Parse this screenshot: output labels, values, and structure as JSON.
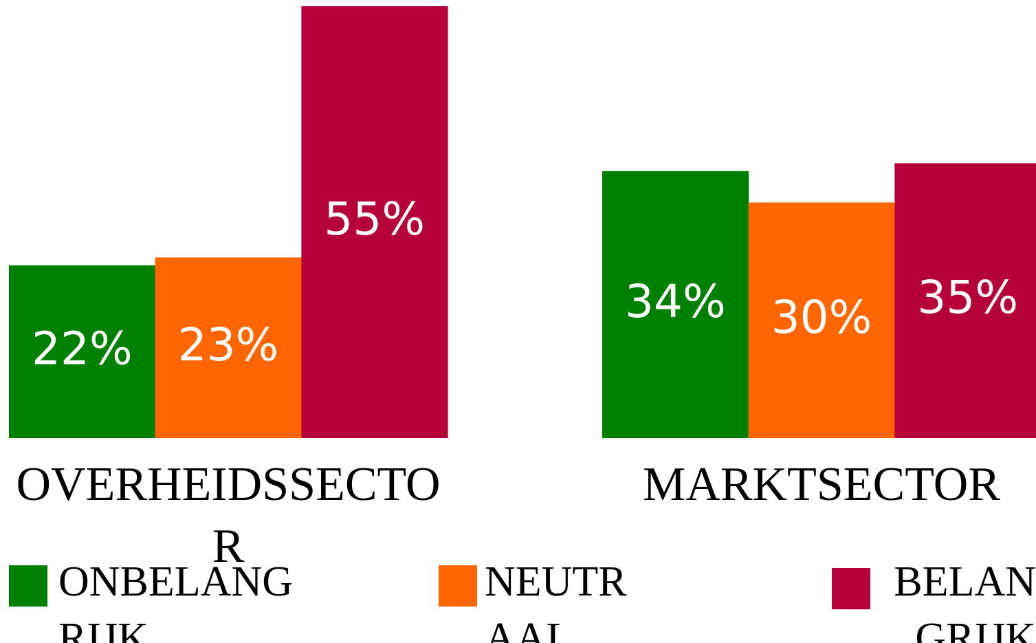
{
  "chart_data": {
    "type": "bar",
    "categories": [
      "OVERHEIDSSECTOR",
      "MARKTSECTOR"
    ],
    "series": [
      {
        "name": "ONBELANGRIJK",
        "color": "#008000",
        "values": [
          22,
          34
        ],
        "value_labels": [
          "22%",
          "34%"
        ]
      },
      {
        "name": "NEUTRAAL",
        "color": "#ff6600",
        "values": [
          23,
          30
        ],
        "value_labels": [
          "23%",
          "30%"
        ]
      },
      {
        "name": "BELANGRIJK",
        "color": "#b5003a",
        "values": [
          55,
          35
        ],
        "value_labels": [
          "55%",
          "35%"
        ]
      }
    ],
    "ylim": [
      0,
      55
    ]
  }
}
